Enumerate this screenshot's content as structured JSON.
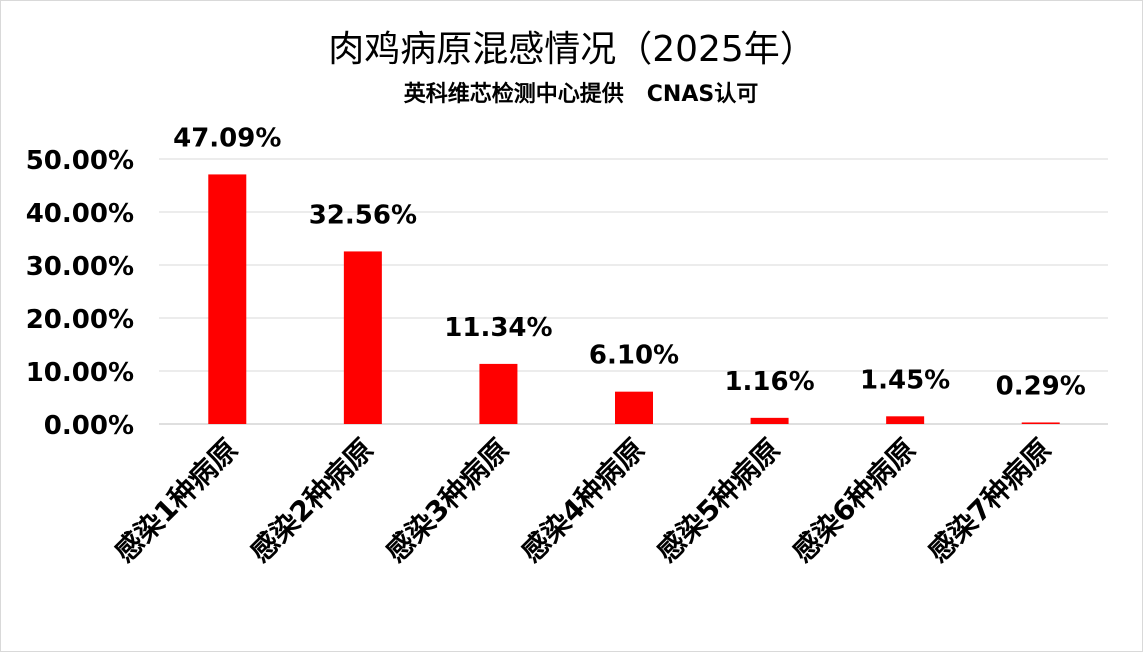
{
  "chart_data": {
    "type": "bar",
    "title": "肉鸡病原混感情况（2025年）",
    "subtitle": "英科维芯检测中心提供   CNAS认可",
    "categories": [
      "感染1种病原",
      "感染2种病原",
      "感染3种病原",
      "感染4种病原",
      "感染5种病原",
      "感染6种病原",
      "感染7种病原"
    ],
    "values": [
      47.09,
      32.56,
      11.34,
      6.1,
      1.16,
      1.45,
      0.29
    ],
    "data_labels": [
      "47.09%",
      "32.56%",
      "11.34%",
      "6.10%",
      "1.16%",
      "1.45%",
      "0.29%"
    ],
    "y_ticks": [
      "0.00%",
      "10.00%",
      "20.00%",
      "30.00%",
      "40.00%",
      "50.00%"
    ],
    "ylim": [
      0,
      50
    ],
    "xlabel": "",
    "ylabel": "",
    "grid": true,
    "legend": "none",
    "bar_color": "#ff0000"
  }
}
